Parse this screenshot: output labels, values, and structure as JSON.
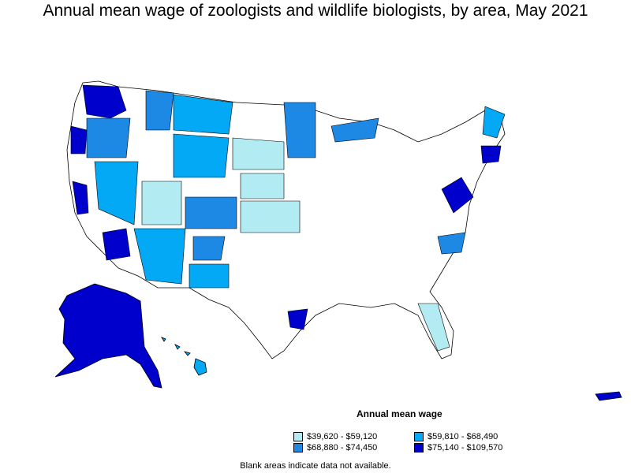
{
  "title": "Annual mean wage of zoologists and wildlife biologists, by area, May 2021",
  "legend": {
    "title": "Annual mean wage",
    "items": [
      {
        "label": "$39,620 - $59,120",
        "color": "#b2ebf2"
      },
      {
        "label": "$59,810 - $68,490",
        "color": "#03a9f4"
      },
      {
        "label": "$68,880 - $74,450",
        "color": "#1e88e5"
      },
      {
        "label": "$75,140 - $109,570",
        "color": "#0000cc"
      }
    ]
  },
  "note": "Blank areas indicate data not available.",
  "colors": {
    "no_data": "#ffffff",
    "border": "#000000"
  }
}
